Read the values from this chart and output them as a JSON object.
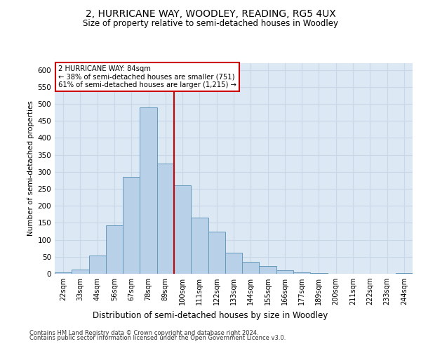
{
  "title": "2, HURRICANE WAY, WOODLEY, READING, RG5 4UX",
  "subtitle": "Size of property relative to semi-detached houses in Woodley",
  "xlabel": "Distribution of semi-detached houses by size in Woodley",
  "ylabel": "Number of semi-detached properties",
  "categories": [
    "22sqm",
    "33sqm",
    "44sqm",
    "56sqm",
    "67sqm",
    "78sqm",
    "89sqm",
    "100sqm",
    "111sqm",
    "122sqm",
    "133sqm",
    "144sqm",
    "155sqm",
    "166sqm",
    "177sqm",
    "189sqm",
    "200sqm",
    "211sqm",
    "222sqm",
    "233sqm",
    "244sqm"
  ],
  "values": [
    5,
    12,
    53,
    143,
    285,
    490,
    325,
    260,
    165,
    125,
    63,
    36,
    23,
    10,
    5,
    2,
    1,
    0,
    0,
    0,
    2
  ],
  "bar_color": "#b8d0e8",
  "bar_edge_color": "#6699bb",
  "red_line_index": 6,
  "marker_label": "2 HURRICANE WAY: 84sqm",
  "pct_smaller": 38,
  "n_smaller": 751,
  "pct_larger": 61,
  "n_larger": 1215,
  "annotation_box_color": "#ffffff",
  "annotation_box_edge_color": "#cc0000",
  "red_line_color": "#cc0000",
  "ylim": [
    0,
    620
  ],
  "yticks": [
    0,
    50,
    100,
    150,
    200,
    250,
    300,
    350,
    400,
    450,
    500,
    550,
    600
  ],
  "grid_color": "#c8d8e8",
  "background_color": "#dce8f4",
  "footer_line1": "Contains HM Land Registry data © Crown copyright and database right 2024.",
  "footer_line2": "Contains public sector information licensed under the Open Government Licence v3.0."
}
